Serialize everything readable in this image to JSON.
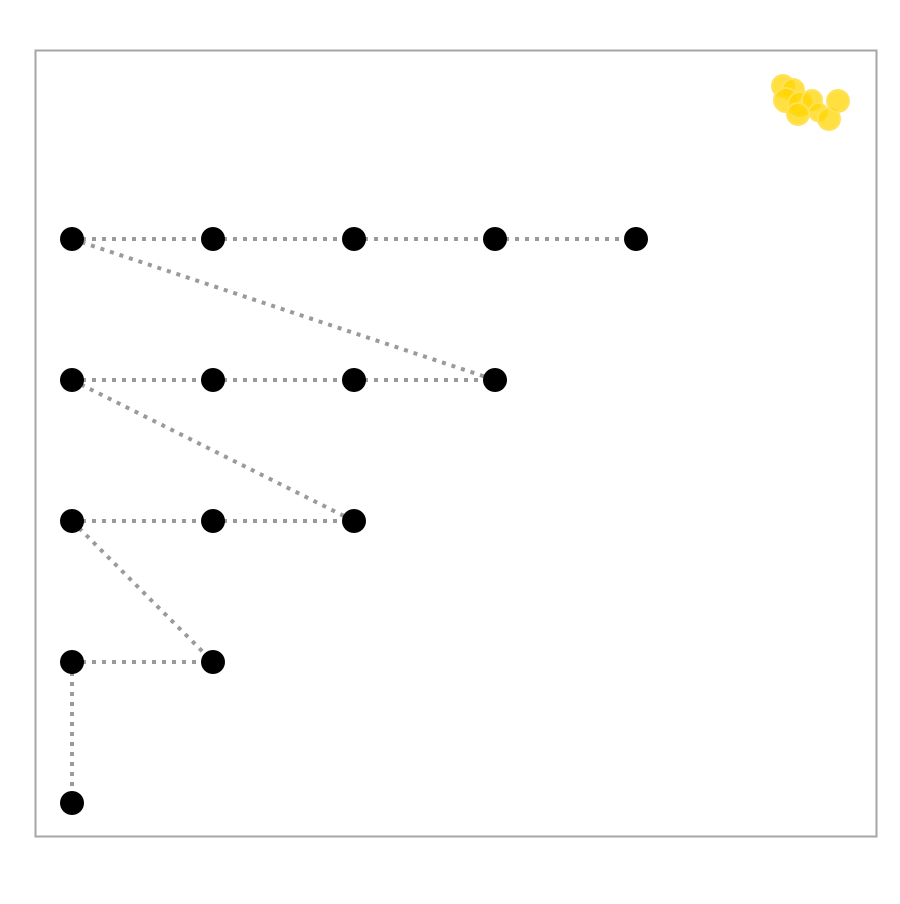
{
  "colors": {
    "background": "#ffffff",
    "frame": "#a6a6a6",
    "edge": "#9a9a9a",
    "node": "#000000",
    "blob_fill": "#ffd500",
    "blob_stroke": "#ffe25a"
  },
  "diagram": {
    "description_shape": "dot-grid staircase with dotted connector lines",
    "rows": [
      {
        "row": 1,
        "count": 5
      },
      {
        "row": 2,
        "count": 4
      },
      {
        "row": 3,
        "count": 3
      },
      {
        "row": 4,
        "count": 2
      },
      {
        "row": 5,
        "count": 1
      }
    ],
    "edges": [
      {
        "from": [
          1,
          1
        ],
        "to": [
          1,
          2
        ]
      },
      {
        "from": [
          1,
          2
        ],
        "to": [
          1,
          3
        ]
      },
      {
        "from": [
          1,
          3
        ],
        "to": [
          1,
          4
        ]
      },
      {
        "from": [
          1,
          4
        ],
        "to": [
          1,
          5
        ]
      },
      {
        "from": [
          1,
          1
        ],
        "to": [
          2,
          4
        ]
      },
      {
        "from": [
          2,
          1
        ],
        "to": [
          2,
          2
        ]
      },
      {
        "from": [
          2,
          2
        ],
        "to": [
          2,
          3
        ]
      },
      {
        "from": [
          2,
          3
        ],
        "to": [
          2,
          4
        ]
      },
      {
        "from": [
          2,
          1
        ],
        "to": [
          3,
          3
        ]
      },
      {
        "from": [
          3,
          1
        ],
        "to": [
          3,
          2
        ]
      },
      {
        "from": [
          3,
          2
        ],
        "to": [
          3,
          3
        ]
      },
      {
        "from": [
          3,
          1
        ],
        "to": [
          4,
          2
        ]
      },
      {
        "from": [
          4,
          1
        ],
        "to": [
          4,
          2
        ]
      },
      {
        "from": [
          4,
          1
        ],
        "to": [
          5,
          1
        ]
      }
    ],
    "marker": {
      "icon": "yellow-blob-cluster",
      "circle_count": 9
    }
  }
}
